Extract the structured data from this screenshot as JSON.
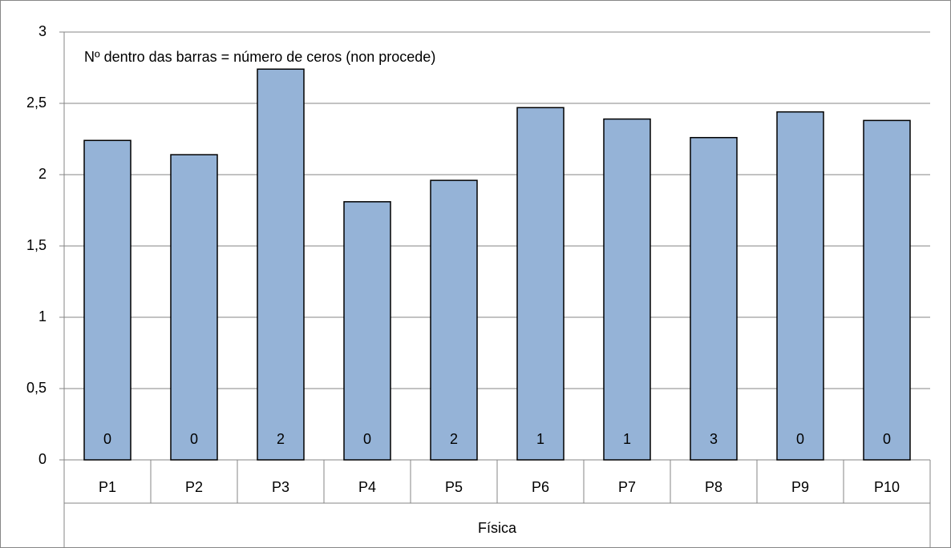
{
  "chart_data": {
    "type": "bar",
    "annotation": "Nº dentro das barras = número de ceros (non procede)",
    "x_label": "Física",
    "categories": [
      "P1",
      "P2",
      "P3",
      "P4",
      "P5",
      "P6",
      "P7",
      "P8",
      "P9",
      "P10"
    ],
    "values": [
      2.24,
      2.14,
      2.74,
      1.81,
      1.96,
      2.47,
      2.39,
      2.26,
      2.44,
      2.38
    ],
    "zeros": [
      0,
      0,
      2,
      0,
      2,
      1,
      1,
      3,
      0,
      0
    ],
    "color": "#95b3d7",
    "ylim": [
      0,
      3
    ],
    "yticks": [
      0,
      {
        "value": 0.5,
        "label": "0,5"
      },
      1,
      {
        "value": 1.5,
        "label": "1,5"
      },
      2,
      {
        "value": 2.5,
        "label": "2,5"
      },
      3
    ],
    "grid": true
  }
}
